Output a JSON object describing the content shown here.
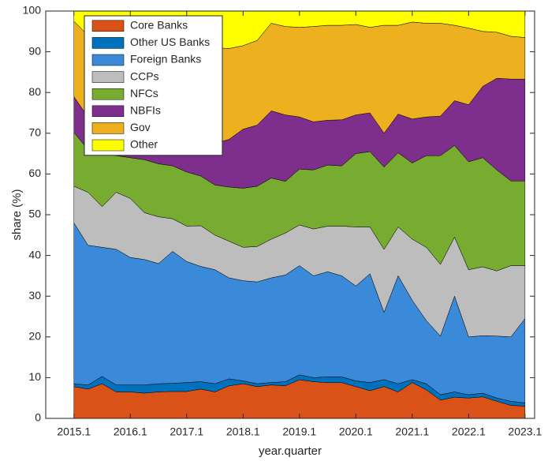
{
  "chart_data": {
    "type": "stacked-area",
    "x_label": "year.quarter",
    "y_label": "share (%)",
    "x": [
      2015,
      2015.25,
      2015.5,
      2015.75,
      2016,
      2016.25,
      2016.5,
      2016.75,
      2017,
      2017.25,
      2017.5,
      2017.75,
      2018,
      2018.25,
      2018.5,
      2018.75,
      2019,
      2019.25,
      2019.5,
      2019.75,
      2020,
      2020.25,
      2020.5,
      2020.75,
      2021,
      2021.25,
      2021.5,
      2021.75,
      2022,
      2022.25,
      2022.5,
      2022.75,
      2023
    ],
    "xlim": [
      2014.5,
      2023.17
    ],
    "xticks": [
      {
        "value": 2015,
        "label": "2015.1"
      },
      {
        "value": 2016,
        "label": "2016.1"
      },
      {
        "value": 2017,
        "label": "2017.1"
      },
      {
        "value": 2018,
        "label": "2018.1"
      },
      {
        "value": 2019,
        "label": "2019.1"
      },
      {
        "value": 2020,
        "label": "2020.1"
      },
      {
        "value": 2021,
        "label": "2021.1"
      },
      {
        "value": 2022,
        "label": "2022.1"
      },
      {
        "value": 2023,
        "label": "2023.1"
      }
    ],
    "ylim": [
      0,
      100
    ],
    "yticks": [
      0,
      10,
      20,
      30,
      40,
      50,
      60,
      70,
      80,
      90,
      100
    ],
    "grid": false,
    "legend": "upper-left",
    "series": [
      {
        "name": "Core Banks",
        "color": "#d95319",
        "values": [
          7.8,
          7.2,
          8.5,
          6.5,
          6.5,
          6.2,
          6.5,
          6.6,
          6.6,
          7.2,
          6.5,
          8.0,
          8.5,
          7.8,
          8.2,
          8.0,
          9.5,
          9.0,
          8.8,
          8.8,
          7.8,
          6.8,
          7.8,
          6.5,
          8.8,
          7.0,
          4.5,
          5.2,
          5.0,
          5.3,
          4.2,
          3.2,
          3.0
        ]
      },
      {
        "name": "Other US Banks",
        "color": "#0072bd",
        "values": [
          0.7,
          1.0,
          1.8,
          1.7,
          1.7,
          2.0,
          2.0,
          2.0,
          2.2,
          1.8,
          2.0,
          1.7,
          0.7,
          0.7,
          0.6,
          1.0,
          1.2,
          1.0,
          1.4,
          1.4,
          1.4,
          2.0,
          1.7,
          2.0,
          0.7,
          1.5,
          1.3,
          1.3,
          0.8,
          0.9,
          0.8,
          1.0,
          0.8
        ]
      },
      {
        "name": "Foreign Banks",
        "color": "#3a8ad9",
        "values": [
          39.5,
          34.3,
          31.7,
          33.3,
          31.3,
          30.8,
          29.5,
          32.4,
          29.7,
          28.3,
          28.0,
          24.8,
          24.6,
          25.0,
          25.7,
          26.2,
          26.8,
          25.0,
          25.8,
          24.8,
          23.3,
          26.7,
          16.5,
          26.5,
          19.5,
          15.5,
          14.4,
          23.5,
          14.2,
          14.1,
          15.2,
          15.8,
          20.7
        ]
      },
      {
        "name": "CCPs",
        "color": "#bdbdbd",
        "values": [
          9.0,
          13.0,
          10.0,
          14.0,
          14.5,
          11.5,
          11.5,
          8.0,
          8.7,
          10.0,
          8.5,
          9.0,
          8.2,
          8.7,
          9.5,
          10.3,
          10.0,
          11.5,
          11.2,
          12.2,
          14.5,
          11.5,
          15.5,
          12.0,
          15.0,
          18.0,
          17.6,
          14.5,
          16.5,
          16.9,
          16.0,
          17.5,
          13.0
        ]
      },
      {
        "name": "NFCs",
        "color": "#77ac30",
        "values": [
          13.2,
          10.5,
          13.0,
          9.0,
          10.0,
          13.0,
          13.0,
          13.0,
          13.3,
          12.2,
          12.3,
          13.3,
          14.5,
          14.8,
          15.0,
          12.7,
          13.7,
          14.5,
          15.0,
          14.8,
          18.0,
          18.5,
          20.2,
          18.2,
          18.7,
          22.5,
          26.7,
          22.5,
          26.5,
          26.8,
          24.8,
          20.8,
          20.8
        ]
      },
      {
        "name": "NBFIs",
        "color": "#7e2f8e",
        "values": [
          8.8,
          8.0,
          7.0,
          6.5,
          6.5,
          6.5,
          5.5,
          9.0,
          8.5,
          8.5,
          10.2,
          11.7,
          14.5,
          15.0,
          16.5,
          16.3,
          12.8,
          11.8,
          11.0,
          11.3,
          9.5,
          9.5,
          8.3,
          9.5,
          10.8,
          9.5,
          9.7,
          11.0,
          14.0,
          17.5,
          22.5,
          25.0,
          25.0
        ]
      },
      {
        "name": "Gov",
        "color": "#edb120",
        "values": [
          18.5,
          20.0,
          23.0,
          23.5,
          23.0,
          23.0,
          23.5,
          20.0,
          21.8,
          23.0,
          23.5,
          22.3,
          20.5,
          20.8,
          21.5,
          21.7,
          22.0,
          23.4,
          23.3,
          23.2,
          22.2,
          21.0,
          26.5,
          21.8,
          23.8,
          23.0,
          22.8,
          18.5,
          18.8,
          13.5,
          11.3,
          10.5,
          10.2
        ]
      },
      {
        "name": "Other",
        "color": "#ffff00",
        "values": [
          2.5,
          6.0,
          5.0,
          5.5,
          6.5,
          7.0,
          8.5,
          9.0,
          9.2,
          9.0,
          9.0,
          9.2,
          8.5,
          7.2,
          3.0,
          3.8,
          4.0,
          3.8,
          3.5,
          3.5,
          3.3,
          4.0,
          3.5,
          3.5,
          2.7,
          3.0,
          3.0,
          3.5,
          4.2,
          5.0,
          5.2,
          6.2,
          6.5
        ]
      }
    ]
  }
}
